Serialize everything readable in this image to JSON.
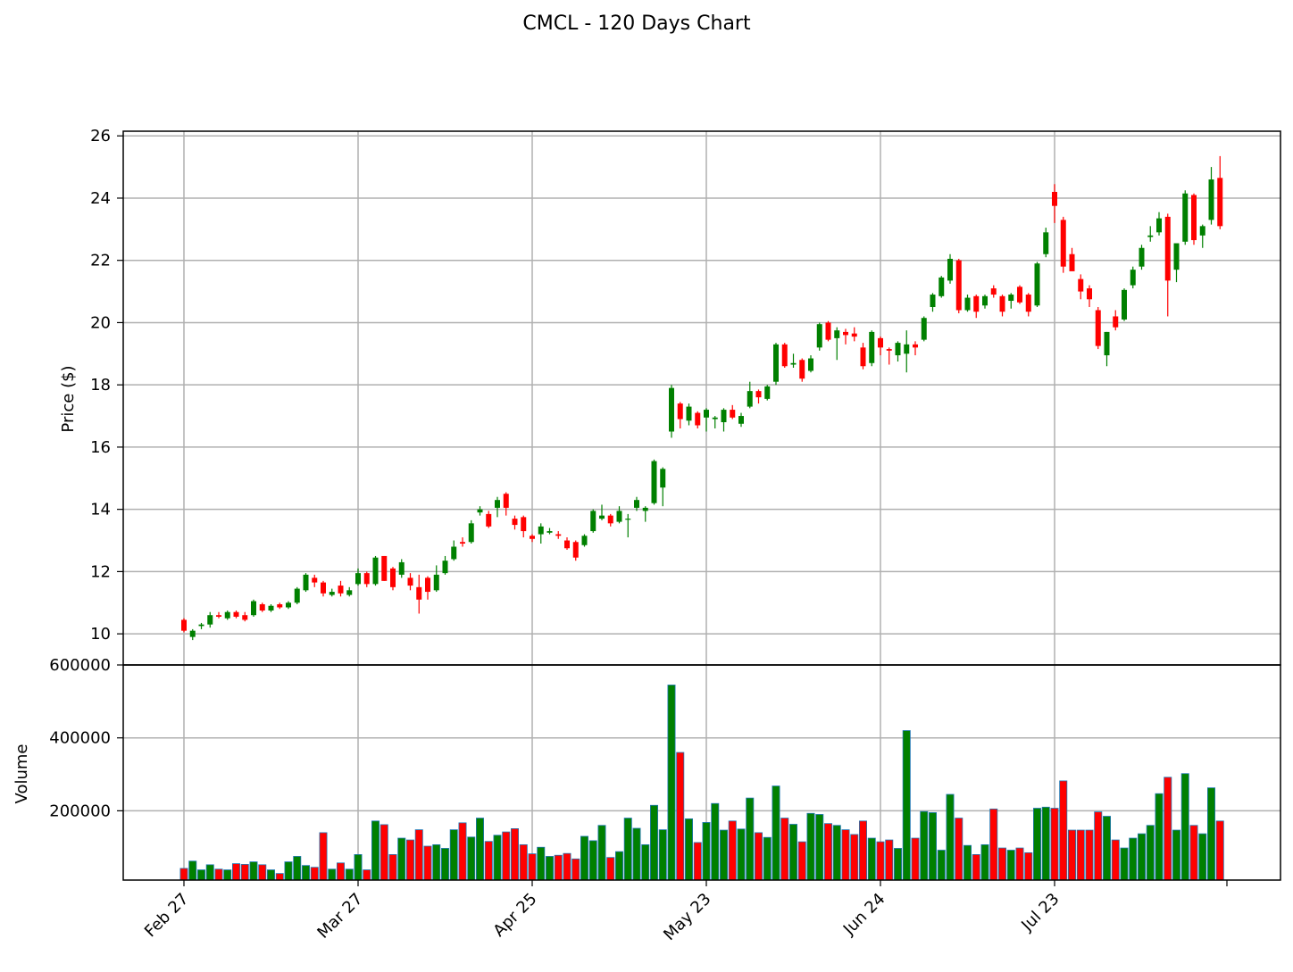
{
  "chart_data": {
    "type": "candlestick",
    "title": "CMCL - 120 Days Chart",
    "colors": {
      "up": "#008000",
      "down": "#ff0000",
      "edge": "#1f77b4",
      "grid": "#b0b0b0"
    },
    "grid": true,
    "xaxis": {
      "tick_labels": [
        "Feb 27",
        "Mar 27",
        "Apr 25",
        "May 23",
        "Jun 24",
        "Jul 23"
      ],
      "tick_indices": [
        0,
        20,
        40,
        60,
        80,
        100
      ]
    },
    "price_panel": {
      "ylabel": "Price ($)",
      "ylim": [
        9.0,
        26.15
      ],
      "yticks": [
        10,
        12,
        14,
        16,
        18,
        20,
        22,
        24,
        26
      ]
    },
    "volume_panel": {
      "ylabel": "Volume",
      "ylim": [
        10000,
        600000
      ],
      "yticks": [
        200000,
        400000,
        600000
      ]
    },
    "ohlc": [
      [
        10.45,
        10.5,
        10.05,
        10.1
      ],
      [
        9.9,
        10.15,
        9.8,
        10.1
      ],
      [
        10.25,
        10.35,
        10.15,
        10.3
      ],
      [
        10.3,
        10.7,
        10.2,
        10.6
      ],
      [
        10.6,
        10.7,
        10.5,
        10.55
      ],
      [
        10.5,
        10.75,
        10.45,
        10.7
      ],
      [
        10.7,
        10.75,
        10.5,
        10.55
      ],
      [
        10.6,
        10.7,
        10.4,
        10.45
      ],
      [
        10.6,
        11.1,
        10.55,
        11.05
      ],
      [
        10.95,
        11.0,
        10.7,
        10.75
      ],
      [
        10.75,
        10.95,
        10.7,
        10.9
      ],
      [
        10.95,
        11.0,
        10.8,
        10.85
      ],
      [
        10.85,
        11.05,
        10.8,
        11.0
      ],
      [
        11.0,
        11.5,
        10.95,
        11.45
      ],
      [
        11.4,
        11.95,
        11.35,
        11.9
      ],
      [
        11.8,
        11.9,
        11.5,
        11.65
      ],
      [
        11.65,
        11.7,
        11.2,
        11.3
      ],
      [
        11.25,
        11.45,
        11.2,
        11.35
      ],
      [
        11.55,
        11.7,
        11.2,
        11.3
      ],
      [
        11.25,
        11.5,
        11.2,
        11.4
      ],
      [
        11.6,
        12.1,
        11.55,
        11.95
      ],
      [
        11.95,
        12.0,
        11.5,
        11.6
      ],
      [
        11.6,
        12.5,
        11.55,
        12.45
      ],
      [
        12.5,
        12.5,
        11.7,
        11.7
      ],
      [
        12.1,
        12.15,
        11.4,
        11.5
      ],
      [
        11.9,
        12.4,
        11.8,
        12.3
      ],
      [
        11.8,
        11.95,
        11.4,
        11.55
      ],
      [
        11.5,
        11.9,
        10.65,
        11.1
      ],
      [
        11.8,
        11.85,
        11.1,
        11.35
      ],
      [
        11.4,
        12.2,
        11.35,
        11.9
      ],
      [
        11.95,
        12.5,
        11.9,
        12.35
      ],
      [
        12.4,
        13.0,
        12.35,
        12.8
      ],
      [
        12.95,
        13.1,
        12.8,
        12.9
      ],
      [
        12.95,
        13.65,
        12.9,
        13.55
      ],
      [
        13.9,
        14.1,
        13.8,
        14.0
      ],
      [
        13.85,
        13.95,
        13.4,
        13.45
      ],
      [
        14.05,
        14.4,
        13.75,
        14.3
      ],
      [
        14.5,
        14.55,
        13.8,
        14.05
      ],
      [
        13.7,
        13.8,
        13.35,
        13.5
      ],
      [
        13.75,
        13.8,
        13.1,
        13.3
      ],
      [
        13.15,
        13.2,
        12.95,
        13.05
      ],
      [
        13.2,
        13.55,
        12.9,
        13.45
      ],
      [
        13.25,
        13.4,
        13.2,
        13.3
      ],
      [
        13.2,
        13.3,
        13.05,
        13.15
      ],
      [
        13.0,
        13.1,
        12.7,
        12.75
      ],
      [
        12.95,
        13.0,
        12.35,
        12.45
      ],
      [
        12.85,
        13.2,
        12.8,
        13.15
      ],
      [
        13.3,
        14.0,
        13.25,
        13.95
      ],
      [
        13.7,
        14.15,
        13.65,
        13.8
      ],
      [
        13.8,
        13.85,
        13.45,
        13.55
      ],
      [
        13.6,
        14.1,
        13.55,
        13.95
      ],
      [
        13.7,
        13.85,
        13.1,
        13.7
      ],
      [
        14.05,
        14.4,
        13.95,
        14.3
      ],
      [
        13.95,
        14.1,
        13.6,
        14.05
      ],
      [
        14.2,
        15.6,
        14.15,
        15.55
      ],
      [
        14.7,
        15.35,
        14.1,
        15.3
      ],
      [
        16.5,
        18.0,
        16.3,
        17.9
      ],
      [
        17.4,
        17.45,
        16.6,
        16.9
      ],
      [
        16.85,
        17.4,
        16.7,
        17.3
      ],
      [
        17.1,
        17.15,
        16.6,
        16.7
      ],
      [
        16.95,
        17.25,
        16.5,
        17.2
      ],
      [
        16.9,
        17.0,
        16.6,
        16.95
      ],
      [
        16.8,
        17.25,
        16.5,
        17.2
      ],
      [
        17.2,
        17.35,
        16.9,
        16.95
      ],
      [
        16.75,
        17.1,
        16.65,
        17.0
      ],
      [
        17.3,
        18.1,
        17.25,
        17.8
      ],
      [
        17.8,
        17.85,
        17.4,
        17.6
      ],
      [
        17.55,
        18.0,
        17.5,
        17.95
      ],
      [
        18.1,
        19.35,
        18.0,
        19.3
      ],
      [
        19.3,
        19.35,
        18.55,
        18.6
      ],
      [
        18.65,
        19.0,
        18.55,
        18.7
      ],
      [
        18.8,
        18.85,
        18.1,
        18.2
      ],
      [
        18.45,
        18.95,
        18.4,
        18.85
      ],
      [
        19.2,
        20.0,
        19.1,
        19.95
      ],
      [
        20.0,
        20.05,
        19.4,
        19.45
      ],
      [
        19.5,
        19.85,
        18.8,
        19.75
      ],
      [
        19.7,
        19.8,
        19.3,
        19.6
      ],
      [
        19.65,
        19.85,
        19.4,
        19.55
      ],
      [
        19.2,
        19.35,
        18.5,
        18.6
      ],
      [
        18.7,
        19.75,
        18.6,
        19.7
      ],
      [
        19.5,
        19.55,
        18.95,
        19.2
      ],
      [
        19.15,
        19.2,
        18.65,
        19.1
      ],
      [
        18.95,
        19.4,
        18.75,
        19.35
      ],
      [
        19.0,
        19.75,
        18.4,
        19.3
      ],
      [
        19.3,
        19.4,
        18.95,
        19.2
      ],
      [
        19.45,
        20.2,
        19.4,
        20.15
      ],
      [
        20.5,
        20.95,
        20.35,
        20.9
      ],
      [
        20.85,
        21.5,
        20.8,
        21.45
      ],
      [
        21.35,
        22.2,
        21.25,
        22.05
      ],
      [
        22.0,
        22.05,
        20.3,
        20.4
      ],
      [
        20.4,
        20.9,
        20.35,
        20.8
      ],
      [
        20.85,
        20.9,
        20.15,
        20.35
      ],
      [
        20.55,
        20.9,
        20.45,
        20.85
      ],
      [
        21.1,
        21.2,
        20.8,
        20.9
      ],
      [
        20.85,
        20.9,
        20.2,
        20.35
      ],
      [
        20.7,
        20.95,
        20.45,
        20.9
      ],
      [
        21.15,
        21.2,
        20.6,
        20.65
      ],
      [
        20.9,
        20.95,
        20.2,
        20.35
      ],
      [
        20.55,
        21.95,
        20.5,
        21.9
      ],
      [
        22.2,
        23.05,
        22.1,
        22.9
      ],
      [
        24.2,
        24.45,
        23.2,
        23.75
      ],
      [
        23.3,
        23.4,
        21.6,
        21.8
      ],
      [
        22.2,
        22.4,
        21.7,
        21.65
      ],
      [
        21.4,
        21.55,
        20.75,
        21.0
      ],
      [
        21.1,
        21.2,
        20.5,
        20.75
      ],
      [
        20.4,
        20.5,
        19.15,
        19.25
      ],
      [
        18.95,
        19.7,
        18.6,
        19.7
      ],
      [
        20.2,
        20.4,
        19.75,
        19.85
      ],
      [
        20.1,
        21.1,
        20.05,
        21.05
      ],
      [
        21.2,
        21.8,
        21.1,
        21.7
      ],
      [
        21.8,
        22.5,
        21.7,
        22.4
      ],
      [
        22.75,
        23.1,
        22.6,
        22.8
      ],
      [
        22.9,
        23.55,
        22.8,
        23.35
      ],
      [
        23.4,
        23.5,
        20.2,
        21.35
      ],
      [
        21.7,
        22.4,
        21.3,
        22.55
      ],
      [
        22.6,
        24.25,
        22.5,
        24.15
      ],
      [
        24.1,
        24.15,
        22.5,
        22.65
      ],
      [
        22.8,
        23.15,
        22.4,
        23.1
      ],
      [
        23.3,
        25.0,
        23.15,
        24.6
      ],
      [
        24.65,
        25.35,
        23.0,
        23.1
      ]
    ],
    "volume": [
      42000,
      62000,
      38000,
      52000,
      40000,
      38000,
      55000,
      53000,
      60000,
      52000,
      38000,
      28000,
      60000,
      75000,
      50000,
      45000,
      140000,
      40000,
      57000,
      40000,
      80000,
      38000,
      172000,
      162000,
      80000,
      125000,
      120000,
      148000,
      103000,
      107000,
      97000,
      148000,
      167000,
      128000,
      180000,
      116000,
      133000,
      142000,
      151000,
      107000,
      82000,
      100000,
      75000,
      78000,
      83000,
      68000,
      130000,
      118000,
      160000,
      72000,
      88000,
      180000,
      152000,
      107000,
      215000,
      148000,
      545000,
      360000,
      178000,
      113000,
      168000,
      220000,
      147000,
      172000,
      150000,
      235000,
      140000,
      127000,
      268000,
      180000,
      163000,
      115000,
      193000,
      190000,
      165000,
      160000,
      148000,
      135000,
      172000,
      125000,
      115000,
      120000,
      97000,
      420000,
      125000,
      198000,
      195000,
      92000,
      245000,
      180000,
      105000,
      80000,
      107000,
      205000,
      98000,
      92000,
      98000,
      85000,
      207000,
      210000,
      207000,
      282000,
      147000,
      147000,
      147000,
      197000,
      185000,
      120000,
      98000,
      125000,
      137000,
      160000,
      247000,
      292000,
      147000,
      302000,
      160000,
      137000,
      263000,
      172000
    ]
  }
}
